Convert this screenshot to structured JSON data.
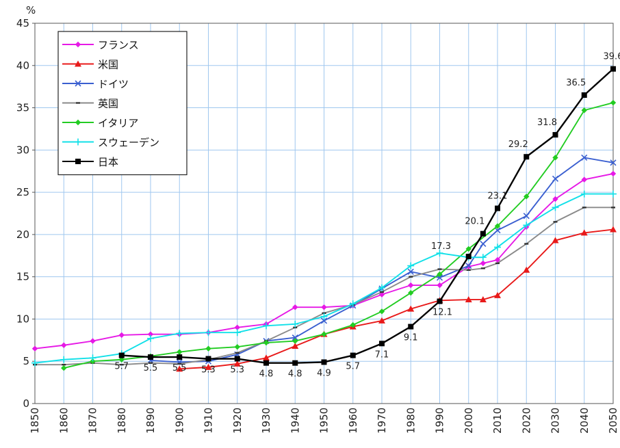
{
  "chart_data": {
    "type": "line",
    "unit_label": "%",
    "ylim": [
      0,
      45
    ],
    "y_ticks": [
      0,
      5,
      10,
      15,
      20,
      25,
      30,
      35,
      40,
      45
    ],
    "x_ticks": [
      1850,
      1860,
      1870,
      1880,
      1890,
      1900,
      1910,
      1920,
      1930,
      1940,
      1950,
      1960,
      1970,
      1980,
      1990,
      2000,
      2010,
      2020,
      2030,
      2040,
      2050
    ],
    "grid": true,
    "legend_position": "top-left",
    "series": [
      {
        "name": "フランス",
        "color": "#e619e6",
        "marker": "diamond",
        "x": [
          1850,
          1860,
          1870,
          1880,
          1890,
          1900,
          1910,
          1920,
          1930,
          1940,
          1950,
          1960,
          1970,
          1980,
          1990,
          2000,
          2005,
          2010,
          2020,
          2030,
          2040,
          2050
        ],
        "y": [
          6.5,
          6.9,
          7.4,
          8.1,
          8.2,
          8.2,
          8.4,
          9.0,
          9.4,
          11.4,
          11.4,
          11.6,
          12.9,
          14.0,
          14.0,
          16.2,
          16.6,
          17.0,
          20.9,
          24.2,
          26.5,
          27.2
        ]
      },
      {
        "name": "米国",
        "color": "#e81a1a",
        "marker": "triangle",
        "x": [
          1900,
          1910,
          1920,
          1930,
          1940,
          1950,
          1960,
          1970,
          1980,
          1990,
          2000,
          2005,
          2010,
          2020,
          2030,
          2040,
          2050
        ],
        "y": [
          4.1,
          4.3,
          4.7,
          5.4,
          6.8,
          8.2,
          9.1,
          9.8,
          11.2,
          12.2,
          12.3,
          12.3,
          12.8,
          15.8,
          19.3,
          20.2,
          20.6
        ]
      },
      {
        "name": "ドイツ",
        "color": "#3a5fd0",
        "marker": "x",
        "x": [
          1890,
          1900,
          1910,
          1920,
          1930,
          1940,
          1950,
          1960,
          1970,
          1980,
          1990,
          2000,
          2005,
          2010,
          2020,
          2030,
          2040,
          2050
        ],
        "y": [
          5.1,
          4.9,
          5.0,
          5.8,
          7.4,
          7.8,
          9.8,
          11.6,
          13.6,
          15.6,
          14.9,
          16.3,
          18.9,
          20.5,
          22.2,
          26.6,
          29.1,
          28.5
        ]
      },
      {
        "name": "英国",
        "color": "#8a8a8a",
        "marker": "dash",
        "x": [
          1850,
          1860,
          1870,
          1880,
          1890,
          1900,
          1910,
          1920,
          1930,
          1940,
          1950,
          1960,
          1970,
          1980,
          1990,
          2000,
          2005,
          2010,
          2020,
          2030,
          2040,
          2050
        ],
        "y": [
          4.6,
          4.6,
          4.8,
          4.6,
          4.8,
          4.7,
          5.2,
          6.0,
          7.4,
          9.0,
          10.7,
          11.7,
          13.2,
          15.0,
          15.9,
          15.8,
          16.0,
          16.6,
          18.9,
          21.5,
          23.2,
          23.2
        ]
      },
      {
        "name": "イタリア",
        "color": "#22cc22",
        "marker": "diamond",
        "x": [
          1860,
          1870,
          1880,
          1890,
          1900,
          1910,
          1920,
          1930,
          1940,
          1950,
          1960,
          1970,
          1980,
          1990,
          2000,
          2010,
          2020,
          2030,
          2040,
          2050
        ],
        "y": [
          4.2,
          5.0,
          5.2,
          5.6,
          6.1,
          6.5,
          6.7,
          7.2,
          7.4,
          8.2,
          9.3,
          10.9,
          13.1,
          15.3,
          18.3,
          21.0,
          24.5,
          29.1,
          34.7,
          35.6
        ]
      },
      {
        "name": "スウェーデン",
        "color": "#11e0e8",
        "marker": "plus",
        "x": [
          1850,
          1860,
          1870,
          1880,
          1890,
          1900,
          1910,
          1920,
          1930,
          1940,
          1950,
          1960,
          1970,
          1980,
          1990,
          2000,
          2005,
          2010,
          2020,
          2030,
          2040,
          2050
        ],
        "y": [
          4.8,
          5.2,
          5.4,
          5.9,
          7.7,
          8.3,
          8.4,
          8.4,
          9.2,
          9.4,
          10.3,
          11.8,
          13.7,
          16.3,
          17.8,
          17.3,
          17.3,
          18.5,
          21.1,
          23.2,
          24.8,
          24.8
        ]
      },
      {
        "name": "日本",
        "color": "#000000",
        "marker": "square",
        "x": [
          1880,
          1890,
          1900,
          1910,
          1920,
          1930,
          1940,
          1950,
          1960,
          1970,
          1980,
          1990,
          2000,
          2005,
          2010,
          2020,
          2030,
          2040,
          2050
        ],
        "y": [
          5.7,
          5.5,
          5.5,
          5.3,
          5.3,
          4.8,
          4.8,
          4.9,
          5.7,
          7.1,
          9.1,
          12.1,
          17.4,
          20.1,
          23.1,
          29.2,
          31.8,
          36.5,
          39.6
        ]
      }
    ],
    "data_labels": [
      {
        "x": 1880,
        "y": 5.7,
        "text": "5.7",
        "pos": "below"
      },
      {
        "x": 1890,
        "y": 5.5,
        "text": "5.5",
        "pos": "below"
      },
      {
        "x": 1900,
        "y": 5.5,
        "text": "5.5",
        "pos": "below"
      },
      {
        "x": 1910,
        "y": 5.3,
        "text": "5.3",
        "pos": "below"
      },
      {
        "x": 1920,
        "y": 5.3,
        "text": "5.3",
        "pos": "below"
      },
      {
        "x": 1930,
        "y": 4.8,
        "text": "4.8",
        "pos": "below"
      },
      {
        "x": 1940,
        "y": 4.8,
        "text": "4.8",
        "pos": "below"
      },
      {
        "x": 1950,
        "y": 4.9,
        "text": "4.9",
        "pos": "below"
      },
      {
        "x": 1960,
        "y": 5.7,
        "text": "5.7",
        "pos": "below"
      },
      {
        "x": 1970,
        "y": 7.1,
        "text": "7.1",
        "pos": "below"
      },
      {
        "x": 1980,
        "y": 9.1,
        "text": "9.1",
        "pos": "below"
      },
      {
        "x": 1990,
        "y": 12.1,
        "text": "12.1",
        "pos": "belowright"
      },
      {
        "x": 1990,
        "y": 12.1,
        "text": "17.3",
        "pos": "farabove"
      },
      {
        "x": 2005,
        "y": 20.1,
        "text": "20.1",
        "pos": "aboveleft"
      },
      {
        "x": 2010,
        "y": 23.1,
        "text": "23.1",
        "pos": "above"
      },
      {
        "x": 2020,
        "y": 29.2,
        "text": "29.2",
        "pos": "aboveleft"
      },
      {
        "x": 2030,
        "y": 31.8,
        "text": "31.8",
        "pos": "aboveleft"
      },
      {
        "x": 2040,
        "y": 36.5,
        "text": "36.5",
        "pos": "aboveleft"
      },
      {
        "x": 2050,
        "y": 39.6,
        "text": "39.6",
        "pos": "above"
      }
    ]
  }
}
